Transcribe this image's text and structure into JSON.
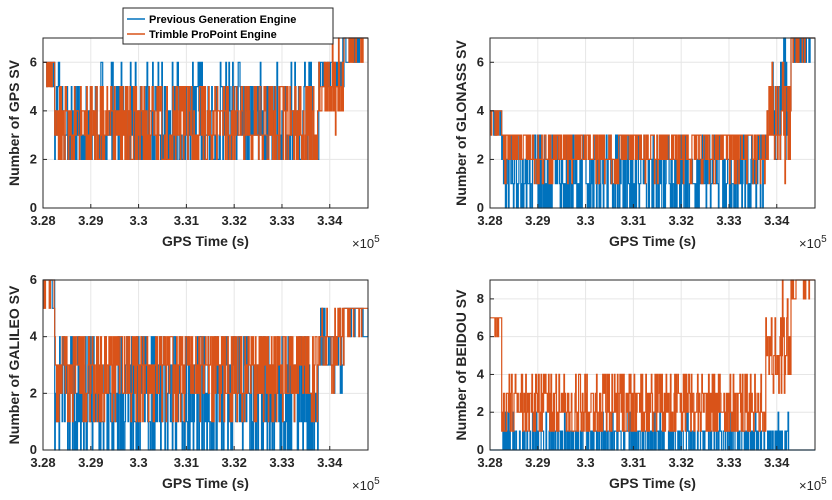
{
  "colors": {
    "previous": "#0072BD",
    "trimble": "#D95319",
    "grid": "#e6e6e6",
    "axis": "#262626"
  },
  "legend": {
    "location": "top-left (first panel)",
    "entries": [
      "Previous Generation Engine",
      "Trimble ProPoint Engine"
    ]
  },
  "chart_data": [
    {
      "type": "line",
      "xlabel": "GPS Time (s)",
      "ylabel": "Number of GPS SV",
      "x_multiplier": "×10",
      "x_multiplier_exp": "5",
      "xlim": [
        3.28,
        3.348
      ],
      "xticks": [
        "3.28",
        "3.29",
        "3.3",
        "3.31",
        "3.32",
        "3.33",
        "3.34"
      ],
      "ylim": [
        0,
        7
      ],
      "yticks": [
        "0",
        "2",
        "4",
        "6"
      ],
      "grid": true,
      "series": [
        {
          "name": "Previous Generation Engine",
          "color": "#0072BD",
          "low": 2,
          "high": 6,
          "mid": 3.5,
          "start": 6,
          "end": 7
        },
        {
          "name": "Trimble ProPoint Engine",
          "color": "#D95319",
          "low": 2,
          "high": 5,
          "mid": 3.5,
          "start": 6,
          "end": 7
        }
      ]
    },
    {
      "type": "line",
      "xlabel": "GPS Time (s)",
      "ylabel": "Number of GLONASS SV",
      "x_multiplier": "×10",
      "x_multiplier_exp": "5",
      "xlim": [
        3.28,
        3.348
      ],
      "xticks": [
        "3.28",
        "3.29",
        "3.3",
        "3.31",
        "3.32",
        "3.33",
        "3.34"
      ],
      "ylim": [
        0,
        7
      ],
      "yticks": [
        "0",
        "2",
        "4",
        "6"
      ],
      "grid": true,
      "series": [
        {
          "name": "Previous Generation Engine",
          "color": "#0072BD",
          "low": 0,
          "high": 3,
          "mid": 1.5,
          "start": 4,
          "end": 7
        },
        {
          "name": "Trimble ProPoint Engine",
          "color": "#D95319",
          "low": 1,
          "high": 3,
          "mid": 2.5,
          "start": 4,
          "end": 7
        }
      ]
    },
    {
      "type": "line",
      "xlabel": "GPS Time (s)",
      "ylabel": "Number of GALILEO SV",
      "x_multiplier": "×10",
      "x_multiplier_exp": "5",
      "xlim": [
        3.28,
        3.348
      ],
      "xticks": [
        "3.28",
        "3.29",
        "3.3",
        "3.31",
        "3.32",
        "3.33",
        "3.34"
      ],
      "ylim": [
        0,
        6
      ],
      "yticks": [
        "0",
        "2",
        "4",
        "6"
      ],
      "grid": true,
      "series": [
        {
          "name": "Previous Generation Engine",
          "color": "#0072BD",
          "low": 0,
          "high": 4,
          "mid": 2,
          "start": 6,
          "end": 5
        },
        {
          "name": "Trimble ProPoint Engine",
          "color": "#D95319",
          "low": 1,
          "high": 4,
          "mid": 3,
          "start": 6,
          "end": 5
        }
      ]
    },
    {
      "type": "line",
      "xlabel": "GPS Time (s)",
      "ylabel": "Number of BEIDOU SV",
      "x_multiplier": "×10",
      "x_multiplier_exp": "5",
      "xlim": [
        3.28,
        3.348
      ],
      "xticks": [
        "3.28",
        "3.29",
        "3.3",
        "3.31",
        "3.32",
        "3.33",
        "3.34"
      ],
      "ylim": [
        0,
        9
      ],
      "yticks": [
        "0",
        "2",
        "4",
        "6",
        "8"
      ],
      "grid": true,
      "series": [
        {
          "name": "Previous Generation Engine",
          "color": "#0072BD",
          "low": 0,
          "high": 2,
          "mid": 0.5,
          "start": 0,
          "end": 0
        },
        {
          "name": "Trimble ProPoint Engine",
          "color": "#D95319",
          "low": 1,
          "high": 4,
          "mid": 2.5,
          "start": 7,
          "end": 9
        }
      ]
    }
  ]
}
